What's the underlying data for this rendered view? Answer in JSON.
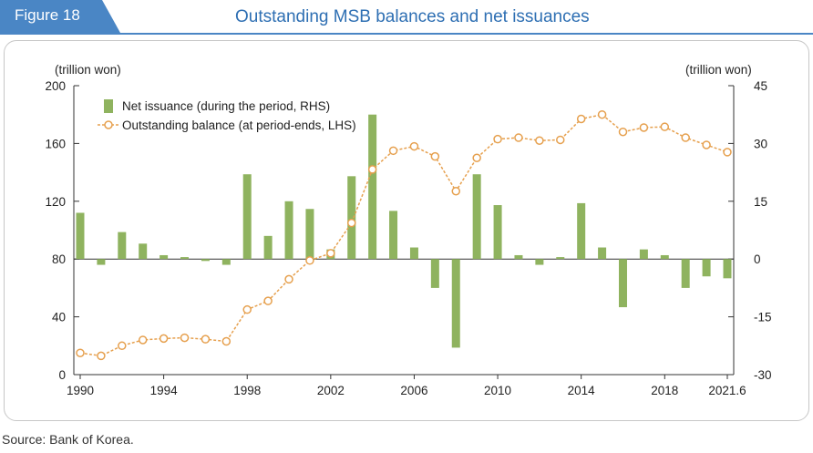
{
  "header": {
    "figure_label": "Figure 18",
    "title": "Outstanding MSB balances and net issuances",
    "badge_color": "#4a86c5",
    "title_color": "#2e6fb3"
  },
  "source": "Source: Bank of Korea.",
  "chart_data": {
    "type": "bar+line",
    "title": "Outstanding MSB balances and net issuances",
    "left_axis": {
      "unit": "(trillion won)",
      "range": [
        0,
        200
      ],
      "ticks": [
        0,
        40,
        80,
        120,
        160,
        200
      ]
    },
    "right_axis": {
      "unit": "(trillion won)",
      "range": [
        -30,
        45
      ],
      "ticks": [
        -30,
        -15,
        0,
        15,
        30,
        45
      ]
    },
    "x_tick_labels": [
      "1990",
      "1994",
      "1998",
      "2002",
      "2006",
      "2010",
      "2014",
      "2018",
      "2021.6"
    ],
    "periods": [
      "1990",
      "1991",
      "1992",
      "1993",
      "1994",
      "1995",
      "1996",
      "1997",
      "1998",
      "1999",
      "2000",
      "2001",
      "2002",
      "2003",
      "2004",
      "2005",
      "2006",
      "2007",
      "2008",
      "2009",
      "2010",
      "2011",
      "2012",
      "2013",
      "2014",
      "2015",
      "2016",
      "2017",
      "2018",
      "2019",
      "2020",
      "2021.6"
    ],
    "legend": {
      "placement": "top-left"
    },
    "series": [
      {
        "name": "Net issuance (during the period, RHS)",
        "kind": "bar",
        "axis": "right",
        "color": "#8fb35f",
        "values": [
          12,
          -1.5,
          7,
          4,
          1,
          0.5,
          -0.5,
          -1.5,
          22,
          6,
          15,
          13,
          2.5,
          21.5,
          37.5,
          12.5,
          3,
          -7.5,
          -23,
          22,
          14,
          1,
          -1.5,
          0.5,
          14.5,
          3,
          -12.5,
          2.5,
          1,
          -7.5,
          -4.5,
          -5
        ]
      },
      {
        "name": "Outstanding balance (at period-ends, LHS)",
        "kind": "line",
        "axis": "left",
        "color": "#e6a04e",
        "values": [
          15,
          13,
          20,
          24,
          25,
          25.5,
          24.5,
          23,
          45,
          51,
          66,
          79,
          84,
          105,
          142,
          155,
          158,
          151,
          127,
          150,
          163,
          164,
          162,
          162.5,
          177,
          180,
          168,
          171,
          171.5,
          164,
          159,
          154
        ]
      }
    ]
  }
}
